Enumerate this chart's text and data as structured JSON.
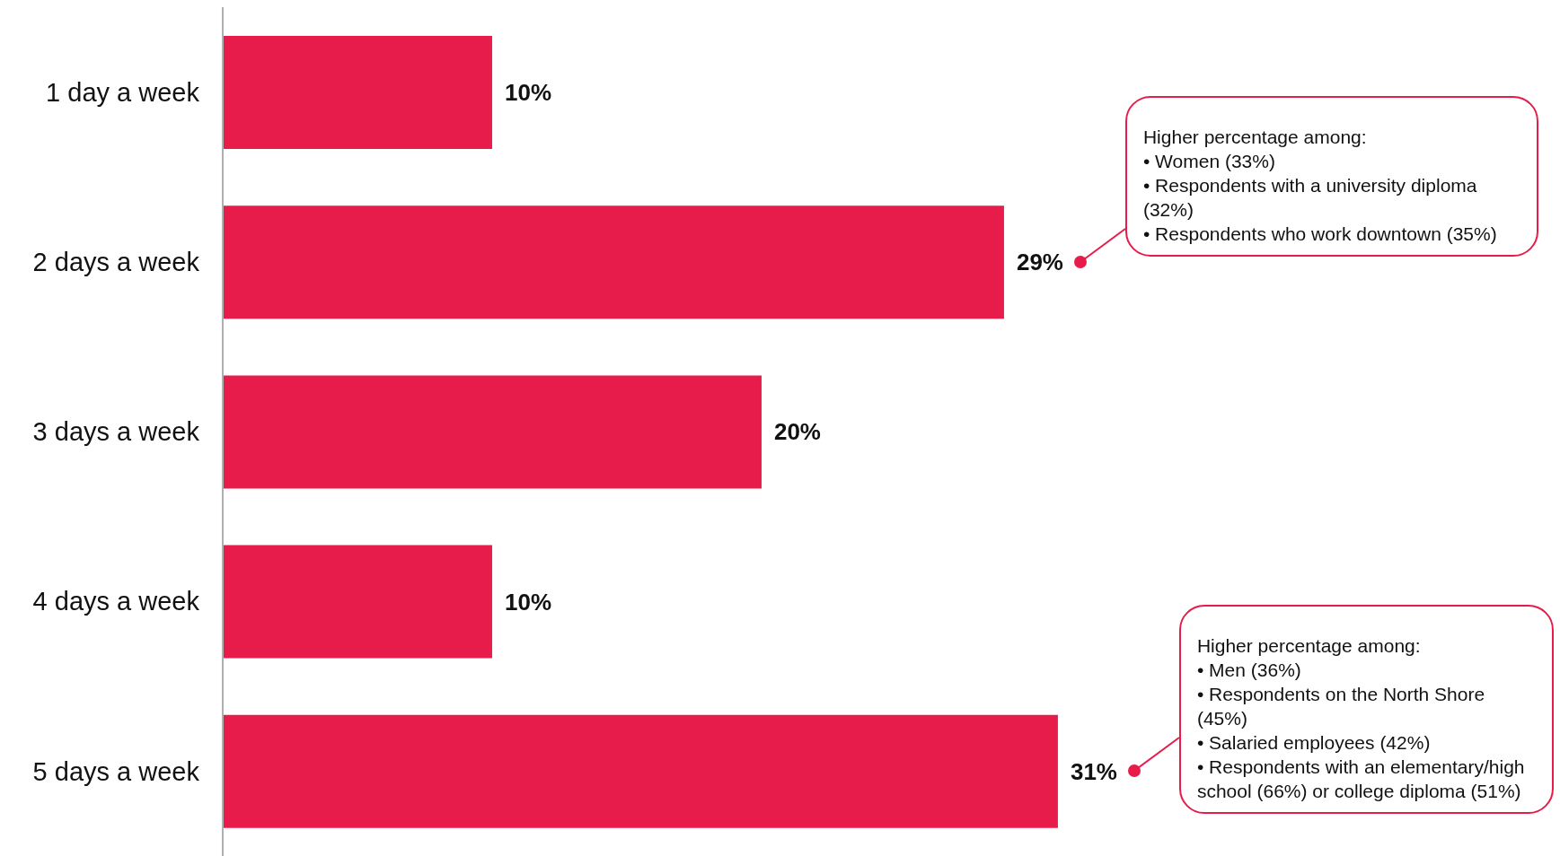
{
  "chart_data": {
    "type": "bar",
    "orientation": "horizontal",
    "categories": [
      "1 day a week",
      "2 days a week",
      "3 days a week",
      "4 days a week",
      "5 days a week"
    ],
    "values": [
      10,
      29,
      20,
      10,
      31
    ],
    "value_labels": [
      "10%",
      "29%",
      "20%",
      "10%",
      "31%"
    ],
    "color": "#e81c4b",
    "annotations": [
      "Higher percentage among:\n• Women (33%)\n• Respondents with a university diploma (32%)\n• Respondents who work downtown (35%)",
      "Higher percentage among:\n• Men (36%)\n• Respondents on the North Shore (45%)\n• Salaried employees (42%)\n• Respondents with an elementary/high school (66%) or college diploma (51%)"
    ]
  }
}
